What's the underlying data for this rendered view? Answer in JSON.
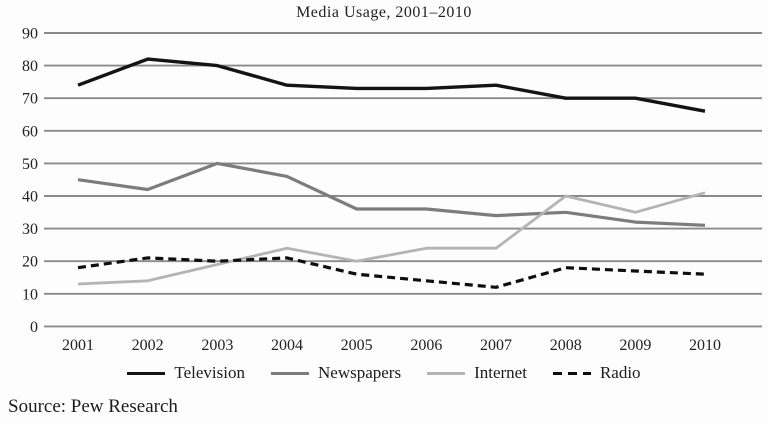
{
  "title": "Media Usage, 2001–2010",
  "source": "Source: Pew Research",
  "chart_data": {
    "type": "line",
    "title": "Media Usage, 2001–2010",
    "xlabel": "",
    "ylabel": "",
    "x": [
      "2001",
      "2002",
      "2003",
      "2004",
      "2005",
      "2006",
      "2007",
      "2008",
      "2009",
      "2010"
    ],
    "ylim": [
      0,
      90
    ],
    "yticks": [
      0,
      10,
      20,
      30,
      40,
      50,
      60,
      70,
      80,
      90
    ],
    "grid": true,
    "legend_position": "bottom",
    "gridline_color": "#8a8a8a",
    "tick_label_color": "#222222",
    "series": [
      {
        "name": "Television",
        "color": "#141414",
        "dash": "",
        "width": 3.4,
        "values": [
          74,
          82,
          80,
          74,
          73,
          73,
          74,
          70,
          70,
          66
        ]
      },
      {
        "name": "Newspapers",
        "color": "#7c7c7c",
        "dash": "",
        "width": 3.2,
        "values": [
          45,
          42,
          50,
          46,
          36,
          36,
          34,
          35,
          32,
          31
        ]
      },
      {
        "name": "Internet",
        "color": "#b4b4b4",
        "dash": "",
        "width": 2.8,
        "values": [
          13,
          14,
          19,
          24,
          20,
          24,
          24,
          40,
          35,
          41
        ]
      },
      {
        "name": "Radio",
        "color": "#0e0e0e",
        "dash": "8 5",
        "width": 3.2,
        "values": [
          18,
          21,
          20,
          21,
          16,
          14,
          12,
          18,
          17,
          16
        ]
      }
    ]
  }
}
